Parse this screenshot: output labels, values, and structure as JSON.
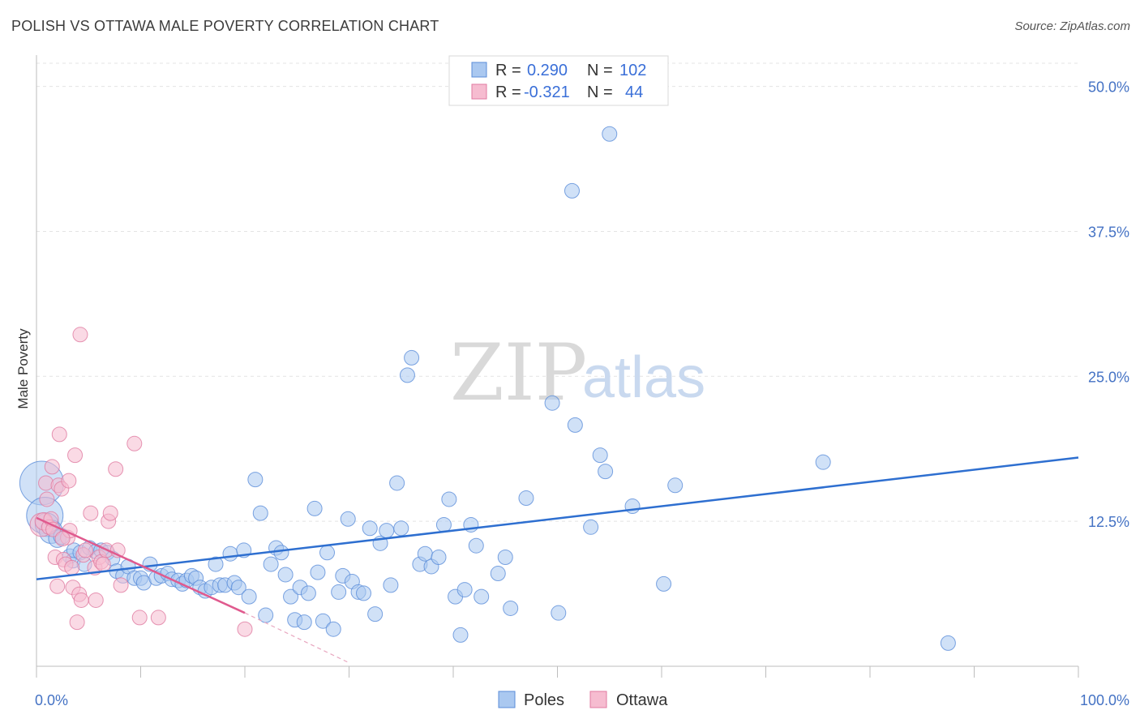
{
  "header": {
    "title": "POLISH VS OTTAWA MALE POVERTY CORRELATION CHART",
    "source": "Source: ZipAtlas.com"
  },
  "watermark": {
    "part1": "ZIP",
    "part2": "atlas"
  },
  "legend_top": {
    "rows": [
      {
        "r_label": "R =",
        "r_value": "0.290",
        "n_label": "N =",
        "n_value": "102",
        "color": "#aac8f0",
        "stroke": "#5b8dd9"
      },
      {
        "r_label": "R =",
        "r_value": "-0.321",
        "n_label": "N =",
        "n_value": "44",
        "color": "#f6bcd0",
        "stroke": "#e07aa0"
      }
    ]
  },
  "legend_bottom": {
    "items": [
      {
        "label": "Poles",
        "color": "#aac8f0",
        "stroke": "#5b8dd9"
      },
      {
        "label": "Ottawa",
        "color": "#f6bcd0",
        "stroke": "#e07aa0"
      }
    ]
  },
  "chart_data": {
    "type": "scatter",
    "title": "POLISH VS OTTAWA MALE POVERTY CORRELATION CHART",
    "xlabel": "",
    "ylabel": "Male Poverty",
    "xlim": [
      0,
      100
    ],
    "ylim": [
      0,
      52
    ],
    "x_tick_labels": [
      {
        "value": 0,
        "label": "0.0%"
      },
      {
        "value": 100,
        "label": "100.0%"
      }
    ],
    "y_tick_labels": [
      {
        "value": 12.5,
        "label": "12.5%"
      },
      {
        "value": 25.0,
        "label": "25.0%"
      },
      {
        "value": 37.5,
        "label": "37.5%"
      },
      {
        "value": 50.0,
        "label": "50.0%"
      }
    ],
    "grid": true,
    "legend_position": "top-center",
    "series": [
      {
        "name": "Poles",
        "color": "#aac8f0",
        "stroke": "#5b8dd9",
        "trend": {
          "x": [
            0,
            100
          ],
          "y": [
            7.5,
            18.0
          ],
          "color": "#2e6fd0"
        },
        "points": [
          [
            0.5,
            15.8,
            3
          ],
          [
            0.8,
            13.0,
            2.5
          ],
          [
            1.0,
            12.2,
            1.6
          ],
          [
            1.4,
            11.6,
            1.6
          ],
          [
            2.0,
            11.0,
            1.2
          ],
          [
            2.4,
            11.2,
            1.1
          ],
          [
            3.2,
            9.5,
            1
          ],
          [
            3.5,
            9.1,
            1
          ],
          [
            3.6,
            10.0,
            1
          ],
          [
            4.2,
            9.8,
            1
          ],
          [
            4.6,
            8.8,
            1
          ],
          [
            5.1,
            10.2,
            1
          ],
          [
            5.7,
            9.9,
            1
          ],
          [
            6.2,
            10.0,
            1
          ],
          [
            6.8,
            9.8,
            1
          ],
          [
            7.3,
            9.3,
            1
          ],
          [
            7.7,
            8.2,
            1
          ],
          [
            8.3,
            7.8,
            1
          ],
          [
            8.8,
            8.6,
            1
          ],
          [
            9.4,
            7.6,
            1
          ],
          [
            10.0,
            7.6,
            1
          ],
          [
            10.3,
            7.2,
            1
          ],
          [
            10.9,
            8.8,
            1
          ],
          [
            11.5,
            7.6,
            1
          ],
          [
            12.0,
            7.8,
            1
          ],
          [
            12.6,
            8.0,
            1
          ],
          [
            13.0,
            7.5,
            1
          ],
          [
            13.6,
            7.4,
            1
          ],
          [
            14.0,
            7.1,
            1
          ],
          [
            14.4,
            7.4,
            1
          ],
          [
            14.9,
            7.8,
            1
          ],
          [
            15.3,
            7.6,
            1
          ],
          [
            15.7,
            6.8,
            1
          ],
          [
            16.2,
            6.5,
            1
          ],
          [
            16.8,
            6.8,
            1
          ],
          [
            17.2,
            8.8,
            1
          ],
          [
            17.6,
            7.0,
            1
          ],
          [
            18.1,
            7.0,
            1
          ],
          [
            18.6,
            9.7,
            1
          ],
          [
            19.0,
            7.2,
            1
          ],
          [
            19.4,
            6.8,
            1
          ],
          [
            19.9,
            10.0,
            1
          ],
          [
            20.4,
            6.0,
            1
          ],
          [
            21.0,
            16.1,
            1
          ],
          [
            21.5,
            13.2,
            1
          ],
          [
            22.0,
            4.4,
            1
          ],
          [
            22.5,
            8.8,
            1
          ],
          [
            23.0,
            10.2,
            1
          ],
          [
            23.5,
            9.8,
            1
          ],
          [
            23.9,
            7.9,
            1
          ],
          [
            24.4,
            6.0,
            1
          ],
          [
            24.8,
            4.0,
            1
          ],
          [
            25.3,
            6.8,
            1
          ],
          [
            25.7,
            3.8,
            1
          ],
          [
            26.1,
            6.3,
            1
          ],
          [
            26.7,
            13.6,
            1
          ],
          [
            27.0,
            8.1,
            1
          ],
          [
            27.5,
            3.9,
            1
          ],
          [
            27.9,
            9.8,
            1
          ],
          [
            28.5,
            3.2,
            1
          ],
          [
            29.0,
            6.4,
            1
          ],
          [
            29.4,
            7.8,
            1
          ],
          [
            29.9,
            12.7,
            1
          ],
          [
            30.3,
            7.3,
            1
          ],
          [
            30.9,
            6.4,
            1
          ],
          [
            31.4,
            6.3,
            1
          ],
          [
            32.0,
            11.9,
            1
          ],
          [
            32.5,
            4.5,
            1
          ],
          [
            33.0,
            10.6,
            1
          ],
          [
            33.6,
            11.7,
            1
          ],
          [
            34.0,
            7.0,
            1
          ],
          [
            34.6,
            15.8,
            1
          ],
          [
            35.0,
            11.9,
            1
          ],
          [
            35.6,
            25.1,
            1
          ],
          [
            36.0,
            26.6,
            1
          ],
          [
            36.8,
            8.8,
            1
          ],
          [
            37.3,
            9.7,
            1
          ],
          [
            37.9,
            8.6,
            1
          ],
          [
            38.6,
            9.4,
            1
          ],
          [
            39.1,
            12.2,
            1
          ],
          [
            39.6,
            14.4,
            1
          ],
          [
            40.2,
            6.0,
            1
          ],
          [
            40.7,
            2.7,
            1
          ],
          [
            41.1,
            6.6,
            1
          ],
          [
            41.7,
            12.2,
            1
          ],
          [
            42.2,
            10.4,
            1
          ],
          [
            42.7,
            6.0,
            1
          ],
          [
            44.3,
            8.0,
            1
          ],
          [
            45.0,
            9.4,
            1
          ],
          [
            45.5,
            5.0,
            1
          ],
          [
            47.0,
            14.5,
            1
          ],
          [
            49.5,
            22.7,
            1
          ],
          [
            50.1,
            4.6,
            1
          ],
          [
            51.4,
            41.0,
            1
          ],
          [
            51.7,
            20.8,
            1
          ],
          [
            53.2,
            12.0,
            1
          ],
          [
            54.1,
            18.2,
            1
          ],
          [
            54.6,
            16.8,
            1
          ],
          [
            55.0,
            45.9,
            1
          ],
          [
            57.2,
            13.8,
            1
          ],
          [
            60.2,
            7.1,
            1
          ],
          [
            61.3,
            15.6,
            1
          ],
          [
            75.5,
            17.6,
            1
          ],
          [
            87.5,
            2.0,
            1
          ]
        ]
      },
      {
        "name": "Ottawa",
        "color": "#f6bcd0",
        "stroke": "#e07aa0",
        "trend": {
          "x": [
            0,
            20
          ],
          "y": [
            12.8,
            4.6
          ],
          "color": "#e05a8e"
        },
        "trend_extension": {
          "x": [
            20,
            30
          ],
          "y": [
            4.6,
            0.3
          ]
        },
        "points": [
          [
            0.5,
            12.2,
            1.6
          ],
          [
            0.7,
            12.5,
            1.2
          ],
          [
            0.9,
            15.8,
            1
          ],
          [
            1.0,
            14.4,
            1
          ],
          [
            1.2,
            12.0,
            1
          ],
          [
            1.4,
            12.7,
            1
          ],
          [
            1.5,
            17.2,
            1
          ],
          [
            1.6,
            11.8,
            1
          ],
          [
            1.8,
            9.4,
            1
          ],
          [
            2.0,
            6.9,
            1
          ],
          [
            2.1,
            15.6,
            1
          ],
          [
            2.2,
            20.0,
            1
          ],
          [
            2.4,
            15.3,
            1
          ],
          [
            2.6,
            9.2,
            1
          ],
          [
            2.8,
            8.8,
            1
          ],
          [
            3.0,
            11.1,
            1
          ],
          [
            3.1,
            16.0,
            1
          ],
          [
            3.2,
            11.7,
            1
          ],
          [
            3.4,
            8.5,
            1
          ],
          [
            3.5,
            6.8,
            1
          ],
          [
            3.7,
            18.2,
            1
          ],
          [
            3.9,
            3.8,
            1
          ],
          [
            4.1,
            6.2,
            1
          ],
          [
            4.3,
            5.7,
            1
          ],
          [
            4.5,
            9.6,
            1
          ],
          [
            4.7,
            10.0,
            1
          ],
          [
            5.2,
            13.2,
            1
          ],
          [
            5.6,
            8.5,
            1
          ],
          [
            5.7,
            5.7,
            1
          ],
          [
            6.0,
            9.4,
            1
          ],
          [
            6.2,
            9.0,
            1
          ],
          [
            6.4,
            8.8,
            1
          ],
          [
            6.7,
            10.0,
            1
          ],
          [
            6.9,
            12.5,
            1
          ],
          [
            7.1,
            13.2,
            1
          ],
          [
            7.6,
            17.0,
            1
          ],
          [
            7.8,
            10.0,
            1
          ],
          [
            8.1,
            7.0,
            1
          ],
          [
            9.4,
            19.2,
            1
          ],
          [
            9.9,
            4.2,
            1
          ],
          [
            11.7,
            4.2,
            1
          ],
          [
            20.0,
            3.2,
            1
          ],
          [
            4.2,
            28.6,
            1
          ],
          [
            2.5,
            11.0,
            1
          ]
        ]
      }
    ]
  }
}
